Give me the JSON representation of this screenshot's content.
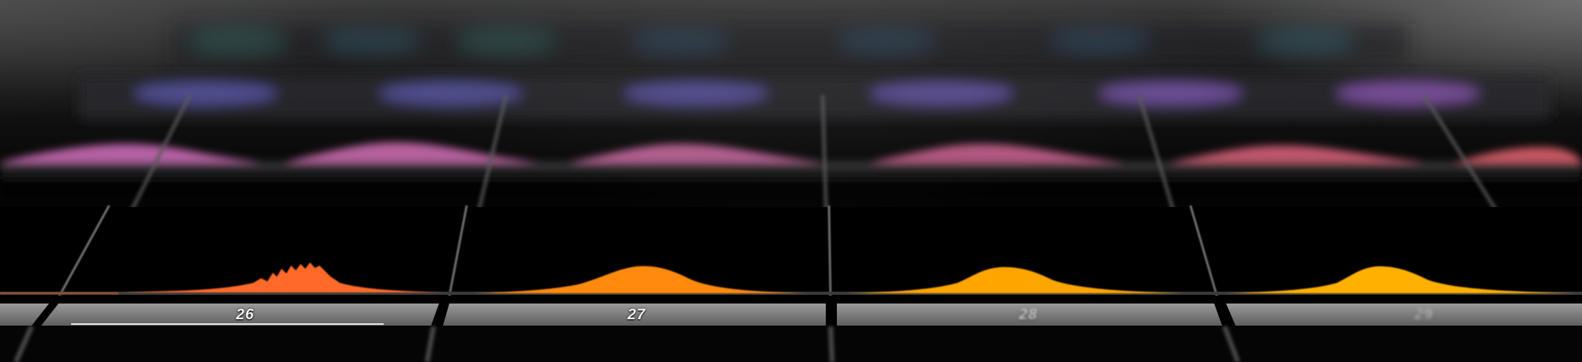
{
  "labels": [
    "26",
    "27",
    "28",
    "29"
  ],
  "colors": {
    "background": "#000000",
    "row1": "#2a5a5a",
    "row2": "#5a58a8",
    "row3": "#c86ab4",
    "row4_a": "#ff6a2a",
    "row4_b": "#ff8a10",
    "row4_c": "#ffa500",
    "row4_d": "#ffb000",
    "label_bar": "#8a8a8a"
  }
}
